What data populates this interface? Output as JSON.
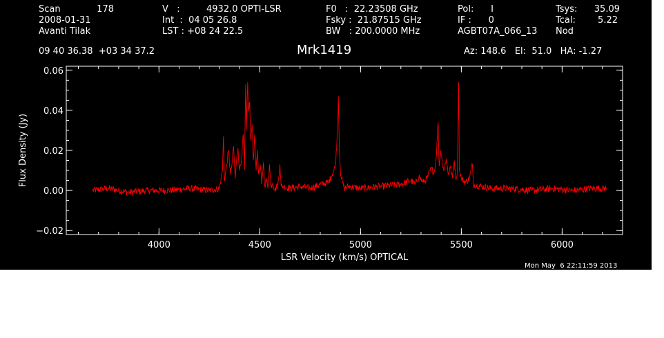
{
  "header": {
    "col1": [
      "Scan",
      "2008-01-31",
      "Avanti Tilak"
    ],
    "scan_number": "178",
    "col2": [
      "V   :",
      "Int  :  04 05 26.8",
      "LST : +08 24 22.5"
    ],
    "velocity_value": "4932.0 OPTI-LSR",
    "col3": [
      "F0   :  22.23508 GHz",
      "Fsky :  21.87515 GHz",
      "BW   : 200.0000 MHz"
    ],
    "col4": [
      "Pol:      I",
      "IF :      0",
      "AGBT07A_066_13"
    ],
    "col5": [
      "Tsys:",
      "Tcal:",
      "Nod"
    ],
    "col5_values": [
      "35.09",
      "5.22"
    ],
    "coords": "09 40 36.38  +03 34 37.2",
    "source": "Mrk1419",
    "pointing": "Az: 148.6   El:  51.0   HA: -1.27",
    "timestamp": "Mon May  6 22:11:59 2013"
  },
  "chart_data": {
    "type": "line",
    "xlabel": "LSR Velocity (km/s) OPTICAL",
    "ylabel": "Flux Density (Jy)",
    "xlim": [
      3540,
      6300
    ],
    "ylim": [
      -0.022,
      0.062
    ],
    "x_ticks": [
      4000,
      4500,
      5000,
      5500,
      6000
    ],
    "y_ticks": [
      -0.02,
      0.0,
      0.02,
      0.04,
      0.06
    ],
    "y_tick_labels": [
      "−0.02",
      "0.00",
      "0.02",
      "0.04",
      "0.06"
    ],
    "x_range": [
      3670,
      6220
    ],
    "grid": false,
    "colors": {
      "line": "#ff0000",
      "axes": "#ffffff",
      "background": "#000000"
    },
    "series": [
      {
        "values": [
          [
            3670,
            0.0
          ],
          [
            3750,
            0.001
          ],
          [
            3850,
            -0.001
          ],
          [
            3950,
            0.0
          ],
          [
            4050,
            0.0
          ],
          [
            4150,
            0.001
          ],
          [
            4250,
            0.0
          ],
          [
            4300,
            0.001
          ],
          [
            4315,
            0.01
          ],
          [
            4320,
            0.027
          ],
          [
            4325,
            0.005
          ],
          [
            4335,
            0.012
          ],
          [
            4345,
            0.02
          ],
          [
            4355,
            0.008
          ],
          [
            4362,
            0.013
          ],
          [
            4370,
            0.022
          ],
          [
            4378,
            0.006
          ],
          [
            4385,
            0.015
          ],
          [
            4392,
            0.021
          ],
          [
            4400,
            0.01
          ],
          [
            4410,
            0.016
          ],
          [
            4418,
            0.028
          ],
          [
            4424,
            0.01
          ],
          [
            4430,
            0.053
          ],
          [
            4434,
            0.03
          ],
          [
            4440,
            0.054
          ],
          [
            4444,
            0.04
          ],
          [
            4450,
            0.044
          ],
          [
            4455,
            0.025
          ],
          [
            4462,
            0.033
          ],
          [
            4468,
            0.015
          ],
          [
            4475,
            0.028
          ],
          [
            4482,
            0.01
          ],
          [
            4488,
            0.02
          ],
          [
            4495,
            0.008
          ],
          [
            4502,
            0.013
          ],
          [
            4510,
            0.003
          ],
          [
            4518,
            0.014
          ],
          [
            4525,
            0.002
          ],
          [
            4532,
            0.006
          ],
          [
            4540,
            0.001
          ],
          [
            4548,
            0.013
          ],
          [
            4555,
            0.002
          ],
          [
            4565,
            0.004
          ],
          [
            4575,
            0.0
          ],
          [
            4590,
            0.003
          ],
          [
            4600,
            0.013
          ],
          [
            4606,
            0.002
          ],
          [
            4620,
            0.002
          ],
          [
            4650,
            0.001
          ],
          [
            4700,
            0.002
          ],
          [
            4750,
            0.001
          ],
          [
            4800,
            0.003
          ],
          [
            4840,
            0.004
          ],
          [
            4860,
            0.008
          ],
          [
            4875,
            0.012
          ],
          [
            4885,
            0.028
          ],
          [
            4890,
            0.047
          ],
          [
            4895,
            0.02
          ],
          [
            4900,
            0.01
          ],
          [
            4910,
            0.004
          ],
          [
            4920,
            0.001
          ],
          [
            4940,
            0.002
          ],
          [
            5000,
            0.001
          ],
          [
            5100,
            0.002
          ],
          [
            5200,
            0.003
          ],
          [
            5250,
            0.005
          ],
          [
            5270,
            0.003
          ],
          [
            5290,
            0.007
          ],
          [
            5310,
            0.004
          ],
          [
            5330,
            0.006
          ],
          [
            5350,
            0.011
          ],
          [
            5365,
            0.009
          ],
          [
            5375,
            0.016
          ],
          [
            5385,
            0.034
          ],
          [
            5390,
            0.012
          ],
          [
            5398,
            0.02
          ],
          [
            5405,
            0.014
          ],
          [
            5415,
            0.01
          ],
          [
            5425,
            0.016
          ],
          [
            5435,
            0.008
          ],
          [
            5445,
            0.012
          ],
          [
            5455,
            0.006
          ],
          [
            5465,
            0.015
          ],
          [
            5472,
            0.006
          ],
          [
            5480,
            0.009
          ],
          [
            5487,
            0.054
          ],
          [
            5490,
            0.01
          ],
          [
            5500,
            0.006
          ],
          [
            5520,
            0.004
          ],
          [
            5540,
            0.006
          ],
          [
            5555,
            0.013
          ],
          [
            5560,
            0.003
          ],
          [
            5600,
            0.002
          ],
          [
            5650,
            0.001
          ],
          [
            5750,
            0.001
          ],
          [
            5850,
            0.0
          ],
          [
            5950,
            0.001
          ],
          [
            6050,
            0.0
          ],
          [
            6150,
            0.001
          ],
          [
            6220,
            0.001
          ]
        ]
      }
    ]
  }
}
